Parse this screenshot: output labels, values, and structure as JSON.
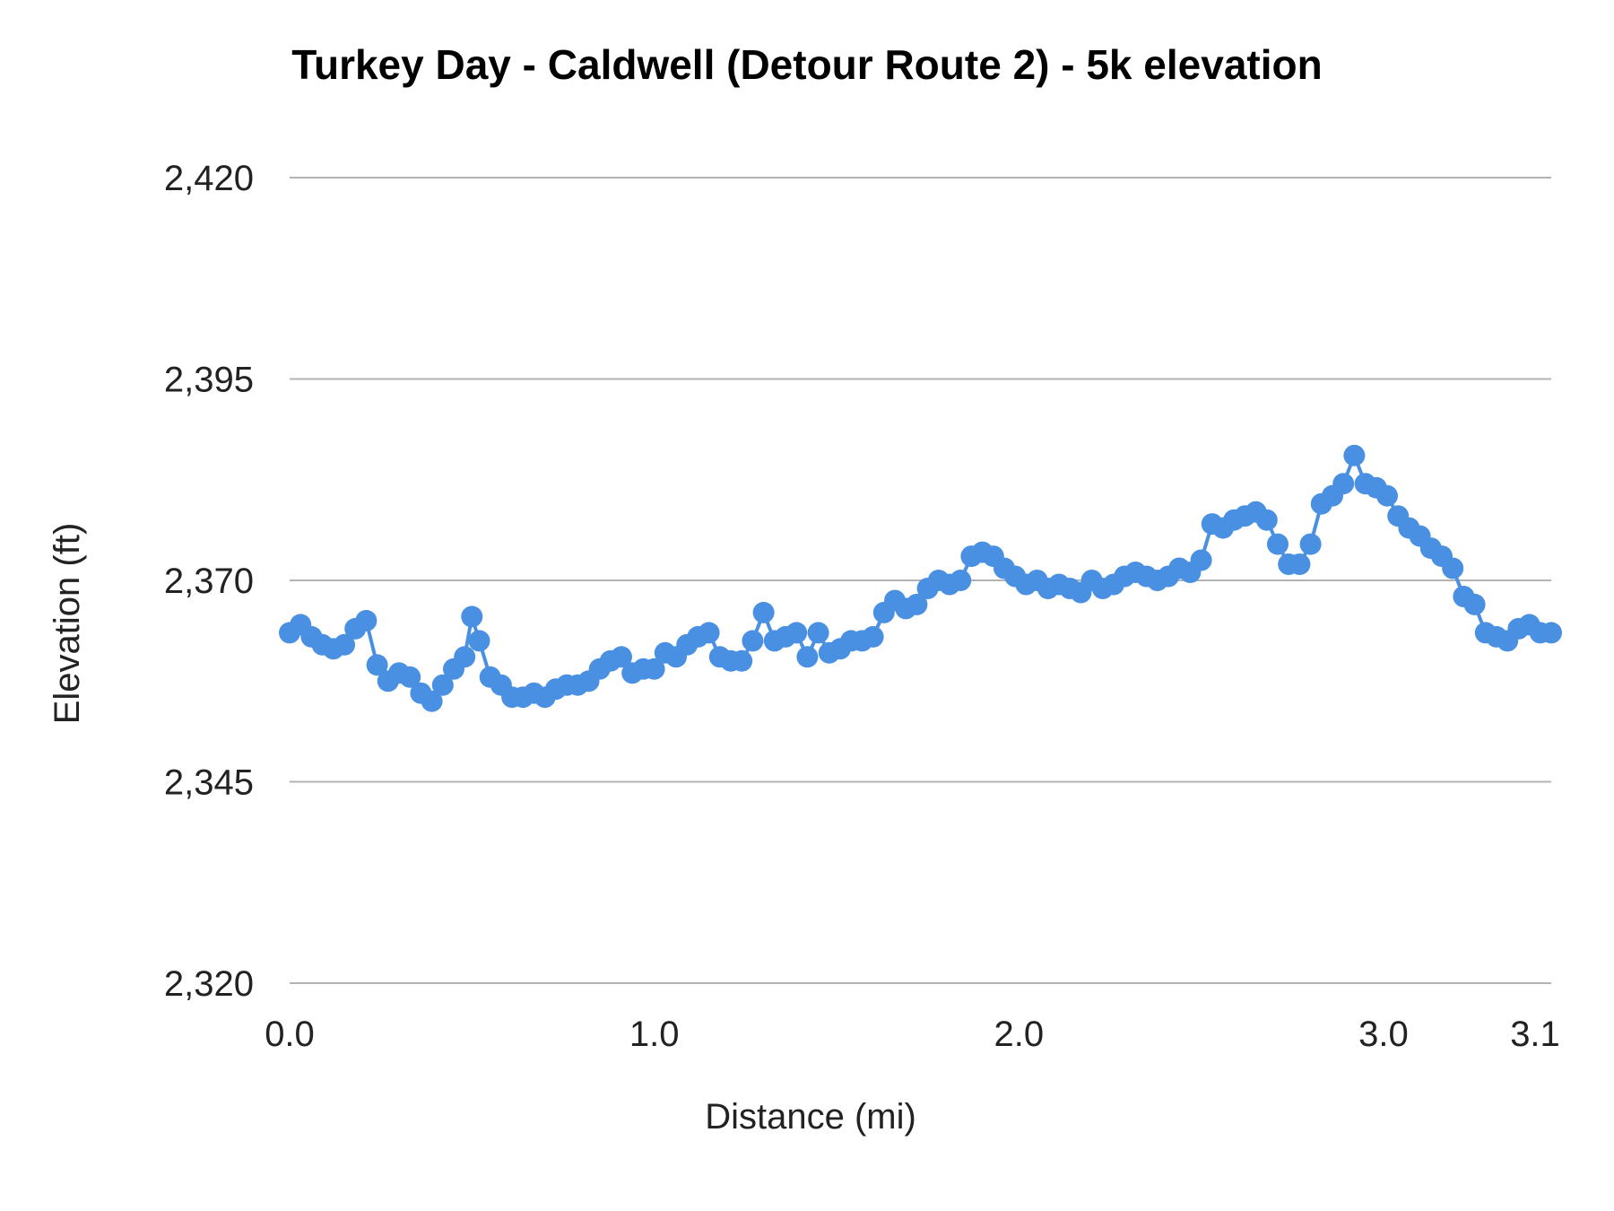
{
  "chart_data": {
    "type": "line",
    "title": "Turkey Day - Caldwell (Detour Route 2) - 5k elevation",
    "xlabel": "Distance (mi)",
    "ylabel": "Elevation (ft)",
    "xlim": [
      0,
      3.1
    ],
    "ylim": [
      2320,
      2420
    ],
    "x_ticks": [
      0.0,
      1.0,
      2.0,
      3.0,
      3.1
    ],
    "x_tick_labels": [
      "0.0",
      "1.0",
      "2.0",
      "3.0",
      "3.1"
    ],
    "y_ticks": [
      2320,
      2345,
      2370,
      2395,
      2420
    ],
    "y_tick_labels": [
      "2,320",
      "2,345",
      "2,370",
      "2,395",
      "2,420"
    ],
    "grid": true,
    "legend": "none",
    "series_color": "#4a90e2",
    "series": [
      {
        "name": "",
        "points": [
          [
            0.0,
            2363.5
          ],
          [
            0.03,
            2364.5
          ],
          [
            0.06,
            2363.0
          ],
          [
            0.09,
            2362.0
          ],
          [
            0.12,
            2361.5
          ],
          [
            0.15,
            2362.0
          ],
          [
            0.18,
            2364.0
          ],
          [
            0.21,
            2365.0
          ],
          [
            0.24,
            2359.5
          ],
          [
            0.27,
            2357.5
          ],
          [
            0.3,
            2358.5
          ],
          [
            0.33,
            2358.0
          ],
          [
            0.36,
            2356.0
          ],
          [
            0.39,
            2355.0
          ],
          [
            0.42,
            2357.0
          ],
          [
            0.45,
            2359.0
          ],
          [
            0.48,
            2360.5
          ],
          [
            0.5,
            2365.5
          ],
          [
            0.52,
            2362.5
          ],
          [
            0.55,
            2358.0
          ],
          [
            0.58,
            2357.0
          ],
          [
            0.61,
            2355.5
          ],
          [
            0.64,
            2355.5
          ],
          [
            0.67,
            2356.0
          ],
          [
            0.7,
            2355.5
          ],
          [
            0.73,
            2356.5
          ],
          [
            0.76,
            2357.0
          ],
          [
            0.79,
            2357.0
          ],
          [
            0.82,
            2357.5
          ],
          [
            0.85,
            2359.0
          ],
          [
            0.88,
            2360.0
          ],
          [
            0.91,
            2360.5
          ],
          [
            0.94,
            2358.5
          ],
          [
            0.97,
            2359.0
          ],
          [
            1.0,
            2359.0
          ],
          [
            1.03,
            2361.0
          ],
          [
            1.06,
            2360.5
          ],
          [
            1.09,
            2362.0
          ],
          [
            1.12,
            2363.0
          ],
          [
            1.15,
            2363.5
          ],
          [
            1.18,
            2360.5
          ],
          [
            1.21,
            2360.0
          ],
          [
            1.24,
            2360.0
          ],
          [
            1.27,
            2362.5
          ],
          [
            1.3,
            2366.0
          ],
          [
            1.33,
            2362.5
          ],
          [
            1.36,
            2363.0
          ],
          [
            1.39,
            2363.5
          ],
          [
            1.42,
            2360.5
          ],
          [
            1.45,
            2363.5
          ],
          [
            1.48,
            2361.0
          ],
          [
            1.51,
            2361.5
          ],
          [
            1.54,
            2362.5
          ],
          [
            1.57,
            2362.5
          ],
          [
            1.6,
            2363.0
          ],
          [
            1.63,
            2366.0
          ],
          [
            1.66,
            2367.5
          ],
          [
            1.69,
            2366.5
          ],
          [
            1.72,
            2367.0
          ],
          [
            1.75,
            2369.0
          ],
          [
            1.78,
            2370.0
          ],
          [
            1.81,
            2369.5
          ],
          [
            1.84,
            2370.0
          ],
          [
            1.87,
            2373.0
          ],
          [
            1.9,
            2373.5
          ],
          [
            1.93,
            2373.0
          ],
          [
            1.96,
            2371.5
          ],
          [
            1.99,
            2370.5
          ],
          [
            2.02,
            2369.5
          ],
          [
            2.05,
            2370.0
          ],
          [
            2.08,
            2369.0
          ],
          [
            2.11,
            2369.5
          ],
          [
            2.14,
            2369.0
          ],
          [
            2.17,
            2368.5
          ],
          [
            2.2,
            2370.0
          ],
          [
            2.23,
            2369.0
          ],
          [
            2.26,
            2369.5
          ],
          [
            2.29,
            2370.5
          ],
          [
            2.32,
            2371.0
          ],
          [
            2.35,
            2370.5
          ],
          [
            2.38,
            2370.0
          ],
          [
            2.41,
            2370.5
          ],
          [
            2.44,
            2371.5
          ],
          [
            2.47,
            2371.0
          ],
          [
            2.5,
            2372.5
          ],
          [
            2.53,
            2377.0
          ],
          [
            2.56,
            2376.5
          ],
          [
            2.59,
            2377.5
          ],
          [
            2.62,
            2378.0
          ],
          [
            2.65,
            2378.5
          ],
          [
            2.68,
            2377.5
          ],
          [
            2.71,
            2374.5
          ],
          [
            2.74,
            2372.0
          ],
          [
            2.77,
            2372.0
          ],
          [
            2.8,
            2374.5
          ],
          [
            2.83,
            2379.5
          ],
          [
            2.86,
            2380.5
          ],
          [
            2.89,
            2382.0
          ],
          [
            2.92,
            2385.5
          ],
          [
            2.95,
            2382.0
          ],
          [
            2.98,
            2381.5
          ],
          [
            3.01,
            2380.5
          ],
          [
            3.04,
            2378.0
          ],
          [
            3.07,
            2376.5
          ],
          [
            3.1,
            2375.5
          ],
          [
            3.13,
            2374.0
          ],
          [
            3.16,
            2373.0
          ],
          [
            3.19,
            2371.5
          ],
          [
            3.22,
            2368.0
          ],
          [
            3.25,
            2367.0
          ],
          [
            3.28,
            2363.5
          ],
          [
            3.31,
            2363.0
          ],
          [
            3.34,
            2362.5
          ],
          [
            3.37,
            2364.0
          ],
          [
            3.4,
            2364.5
          ],
          [
            3.43,
            2363.5
          ],
          [
            3.46,
            2363.5
          ]
        ]
      }
    ]
  }
}
